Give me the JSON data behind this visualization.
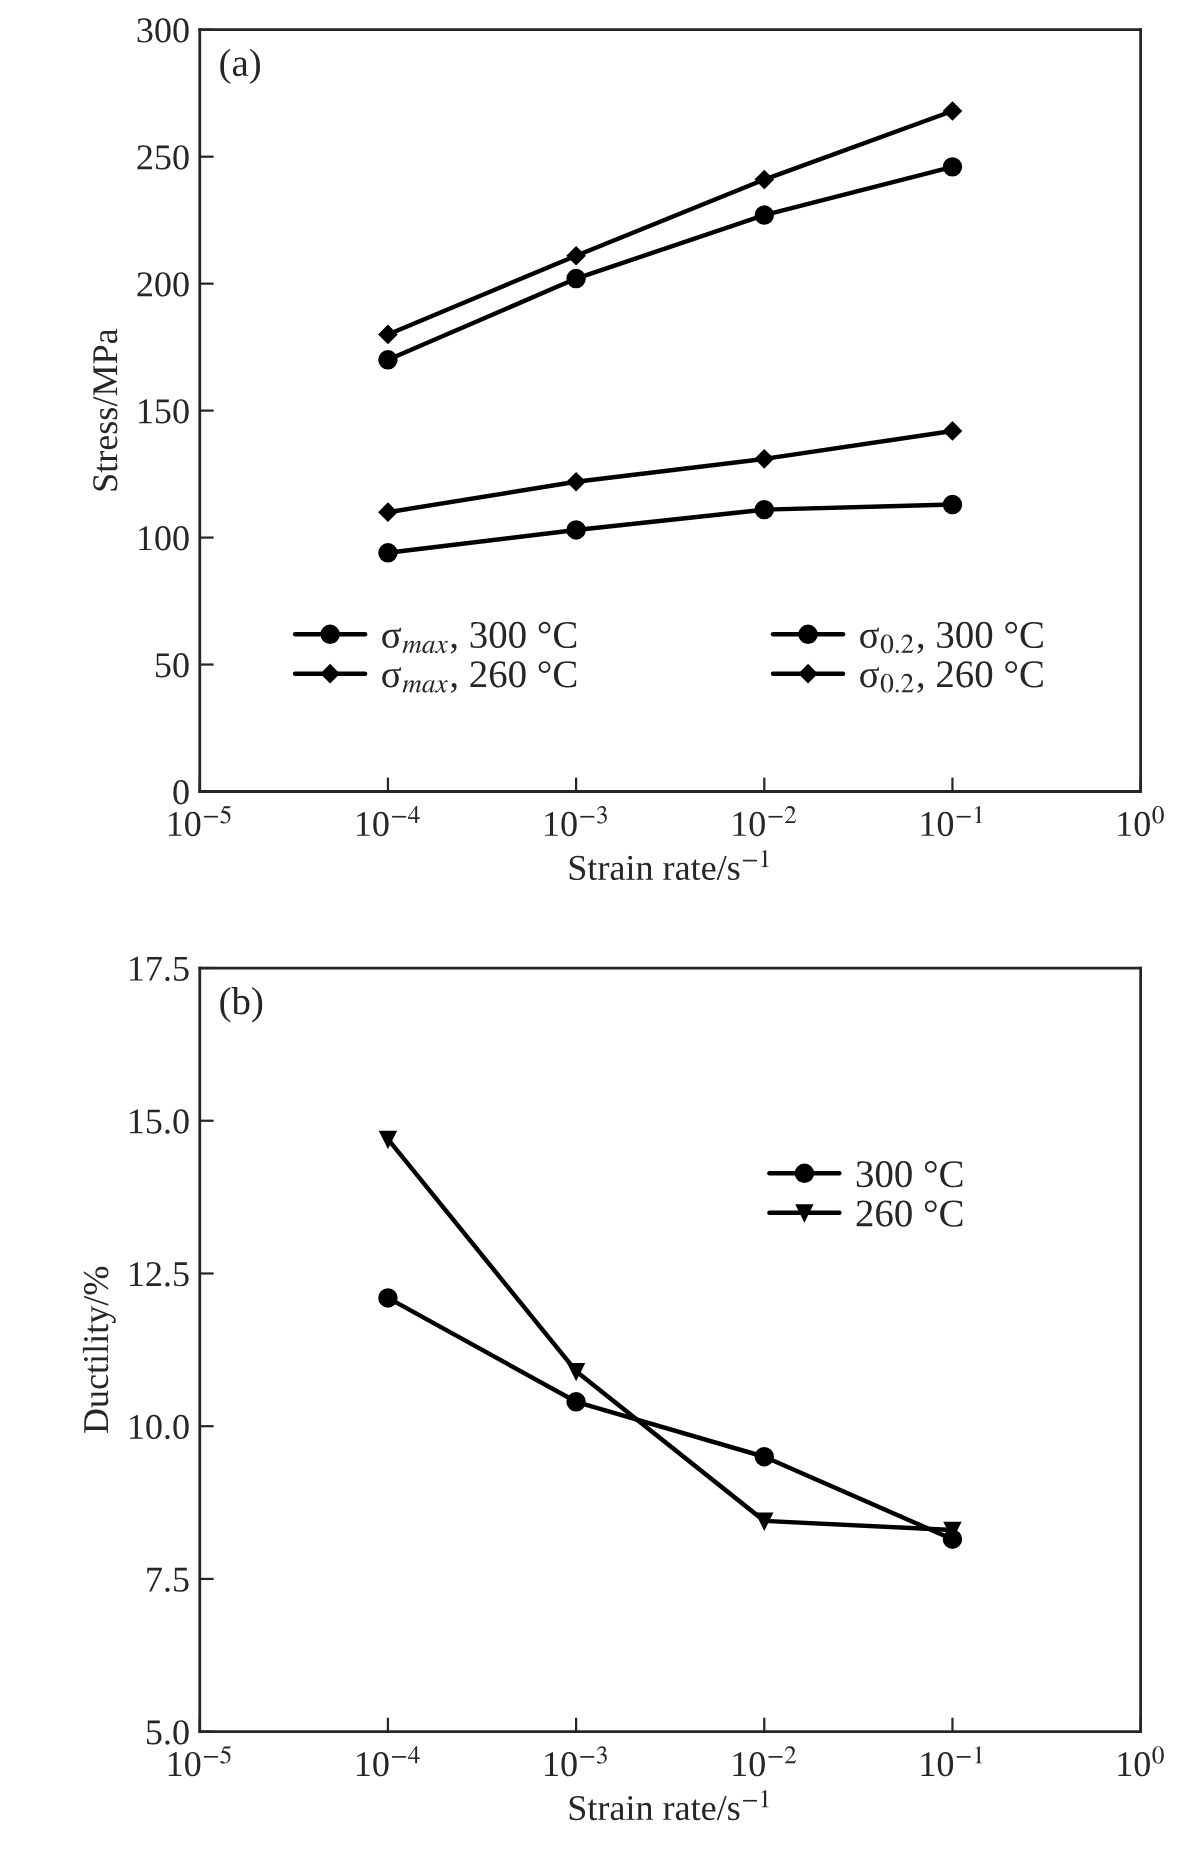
{
  "chart_data": [
    {
      "type": "line",
      "ylabel": "Stress/MPa",
      "xlabel": "Strain rate/s$^{−1}$",
      "annotations": [
        "(a)"
      ],
      "x": [
        0.0001,
        0.001,
        0.01,
        0.1
      ],
      "log": "x",
      "xlim": [
        1e-05,
        1
      ],
      "xticks": [
        {
          "value": 1e-05,
          "label": "10$^{−5}$"
        },
        {
          "value": 0.0001,
          "label": "10$^{−4}$"
        },
        {
          "value": 0.001,
          "label": "10$^{−3}$"
        },
        {
          "value": 0.01,
          "label": "10$^{−2}$"
        },
        {
          "value": 0.1,
          "label": "10$^{−1}$"
        },
        {
          "value": 1,
          "label": "10$^{0}$"
        }
      ],
      "ylim": [
        0,
        300
      ],
      "yticks": [
        0,
        50,
        100,
        150,
        200,
        250,
        300
      ],
      "grid": false,
      "legend": "bottom",
      "line_style": "solid",
      "series": [
        {
          "name": "σ$_{max}$, 300 °C",
          "color": "#000000",
          "marker": "circle",
          "values": [
            170,
            202,
            227,
            246
          ]
        },
        {
          "name": "σ$_{max}$, 260 °C",
          "color": "#000000",
          "marker": "diamond",
          "values": [
            180,
            211,
            241,
            268
          ]
        },
        {
          "name": "σ$_{0.2}$, 300 °C",
          "color": "#000000",
          "marker": "circle",
          "values": [
            94,
            103,
            111,
            113
          ]
        },
        {
          "name": "σ$_{0.2}$, 260 °C",
          "color": "#000000",
          "marker": "diamond",
          "values": [
            110,
            122,
            131,
            142
          ]
        }
      ]
    },
    {
      "type": "line",
      "ylabel": "Ductility/%",
      "xlabel": "Strain rate/s$^{−1}$",
      "annotations": [
        "(b)"
      ],
      "x": [
        0.0001,
        0.001,
        0.01,
        0.1
      ],
      "log": "x",
      "xlim": [
        1e-05,
        1
      ],
      "xticks": [
        {
          "value": 1e-05,
          "label": "10$^{−5}$"
        },
        {
          "value": 0.0001,
          "label": "10$^{−4}$"
        },
        {
          "value": 0.001,
          "label": "10$^{−3}$"
        },
        {
          "value": 0.01,
          "label": "10$^{−2}$"
        },
        {
          "value": 0.1,
          "label": "10$^{−1}$"
        },
        {
          "value": 1,
          "label": "10$^{0}$"
        }
      ],
      "ylim": [
        5,
        17.5
      ],
      "yticks": [
        {
          "value": 5,
          "label": "5.0"
        },
        {
          "value": 7.5,
          "label": "7.5"
        },
        {
          "value": 10,
          "label": "10.0"
        },
        {
          "value": 12.5,
          "label": "12.5"
        },
        {
          "value": 15,
          "label": "15.0"
        },
        {
          "value": 17.5,
          "label": "17.5"
        }
      ],
      "grid": false,
      "legend": "right",
      "line_style": "solid",
      "series": [
        {
          "name": "300 °C",
          "color": "#000000",
          "marker": "circle",
          "values": [
            12.1,
            10.4,
            9.5,
            8.15
          ]
        },
        {
          "name": "260 °C",
          "color": "#000000",
          "marker": "triangle",
          "values": [
            14.7,
            10.9,
            8.45,
            8.3
          ]
        }
      ]
    }
  ]
}
